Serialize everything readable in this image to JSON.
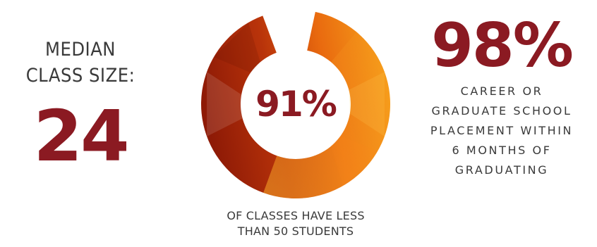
{
  "median_class_size": {
    "label_line1": "MEDIAN",
    "label_line2": "CLASS SIZE:",
    "value": "24"
  },
  "small_classes": {
    "value": "91%",
    "percent": 91,
    "caption_line1": "OF CLASSES HAVE LESS",
    "caption_line2": "THAN 50 STUDENTS"
  },
  "placement": {
    "value": "98%",
    "desc_lines": [
      "CAREER OR",
      "GRADUATE SCHOOL",
      "PLACEMENT WITHIN",
      "6 MONTHS OF",
      "GRADUATING"
    ]
  },
  "colors": {
    "accent": "#8b1a22",
    "text": "#3a3a3a",
    "donut_dark": "#8e1a06",
    "donut_mid": "#d0480a",
    "donut_light": "#f7a21b"
  }
}
